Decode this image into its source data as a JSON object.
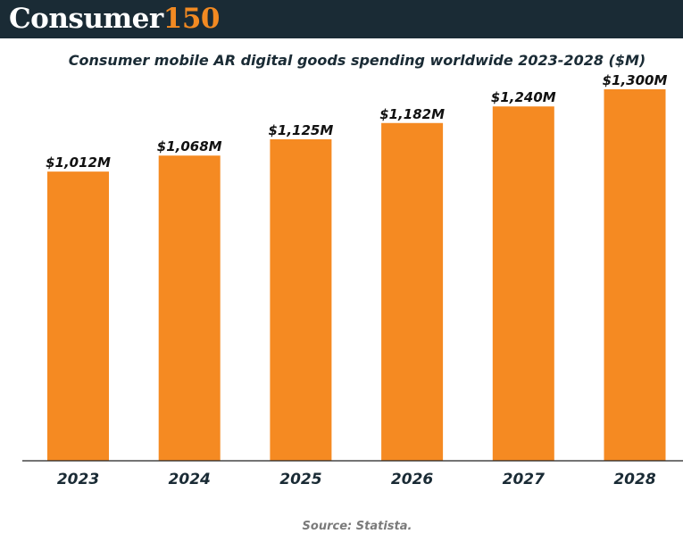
{
  "brand": {
    "name": "Consumer",
    "number": "150"
  },
  "source": "Source: Statista.",
  "colors": {
    "bar": "#f58a22",
    "header": "#1a2b35",
    "accent": "#f28a22",
    "text": "#1a2b35"
  },
  "chart_data": {
    "type": "bar",
    "title": "Consumer mobile AR digital goods spending worldwide 2023-2028 ($M)",
    "xlabel": "",
    "ylabel": "",
    "categories": [
      "2023",
      "2024",
      "2025",
      "2026",
      "2027",
      "2028"
    ],
    "values": [
      1012,
      1068,
      1125,
      1182,
      1240,
      1300
    ],
    "value_labels": [
      "$1,012M",
      "$1,068M",
      "$1,125M",
      "$1,182M",
      "$1,240M",
      "$1,300M"
    ],
    "ylim": [
      0,
      1400
    ],
    "grid": false,
    "legend": "none"
  }
}
